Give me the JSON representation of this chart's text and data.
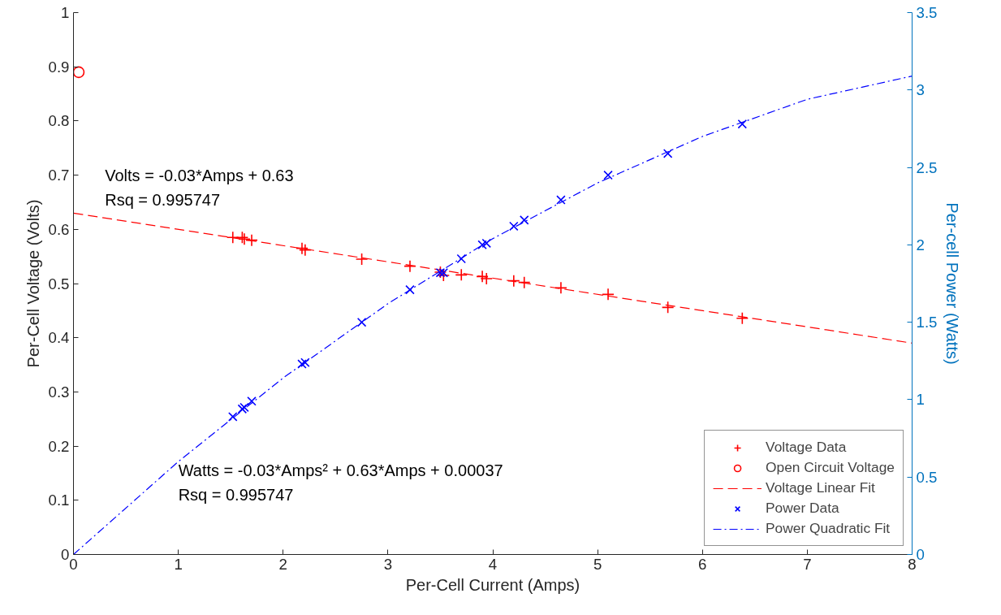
{
  "chart_data": {
    "type": "scatter",
    "xlabel": "Per-Cell Current (Amps)",
    "ylabel": "Per-Cell Voltage (Volts)",
    "y2label": "Per-cell Power (Watts)",
    "xlim": [
      0,
      8
    ],
    "xticks": [
      0,
      1,
      2,
      3,
      4,
      5,
      6,
      7,
      8
    ],
    "ylim": [
      0,
      1
    ],
    "yticks": [
      0,
      0.1,
      0.2,
      0.3,
      0.4,
      0.5,
      0.6,
      0.7,
      0.8,
      0.9,
      1
    ],
    "y2lim": [
      0,
      3.5
    ],
    "y2ticks": [
      0,
      0.5,
      1,
      1.5,
      2,
      2.5,
      3,
      3.5
    ],
    "grid": false,
    "legend": "bottom right",
    "series": [
      {
        "name": "Voltage Data",
        "marker": "cross",
        "color": "#ff0000",
        "x": [
          1.52,
          1.61,
          1.63,
          1.7,
          2.18,
          2.21,
          2.75,
          3.21,
          3.5,
          3.53,
          3.7,
          3.9,
          3.94,
          4.2,
          4.3,
          4.65,
          5.1,
          5.67,
          6.38
        ],
        "values": [
          0.585,
          0.585,
          0.582,
          0.58,
          0.565,
          0.562,
          0.545,
          0.532,
          0.521,
          0.515,
          0.516,
          0.513,
          0.509,
          0.505,
          0.502,
          0.492,
          0.48,
          0.456,
          0.436
        ]
      },
      {
        "name": "Open Circuit Voltage",
        "marker": "circle",
        "color": "#ff0000",
        "x": [
          0.05
        ],
        "values": [
          0.89
        ]
      },
      {
        "name": "Voltage Linear Fit",
        "type": "line",
        "line_style": "dashed",
        "marker": "none",
        "color": "#ff0000",
        "x": [
          0,
          8
        ],
        "values": [
          0.63,
          0.39
        ]
      },
      {
        "name": "Power Data",
        "marker": "x",
        "axis": "y2",
        "color": "#0000ff",
        "x": [
          1.52,
          1.61,
          1.63,
          1.7,
          2.18,
          2.21,
          2.75,
          3.21,
          3.5,
          3.53,
          3.7,
          3.9,
          3.94,
          4.2,
          4.3,
          4.65,
          5.1,
          5.67,
          6.38
        ],
        "values": [
          0.89,
          0.94,
          0.95,
          0.99,
          1.23,
          1.24,
          1.5,
          1.71,
          1.82,
          1.82,
          1.91,
          2.0,
          2.01,
          2.12,
          2.16,
          2.29,
          2.45,
          2.59,
          2.78
        ]
      },
      {
        "name": "Power Quadratic Fit",
        "type": "line",
        "line_style": "dashdot",
        "marker": "none",
        "axis": "y2",
        "color": "#0000ff",
        "x": [
          0,
          1,
          2,
          3,
          4,
          5,
          6,
          7,
          8
        ],
        "values": [
          0,
          0.6,
          1.14,
          1.62,
          2.04,
          2.4,
          2.7,
          2.94,
          3.09
        ]
      }
    ],
    "annotations": [
      "Volts = -0.03*Amps + 0.63",
      "Rsq = 0.995747",
      "Watts = -0.03*Amps² + 0.63*Amps + 0.00037",
      "Rsq = 0.995747"
    ]
  }
}
